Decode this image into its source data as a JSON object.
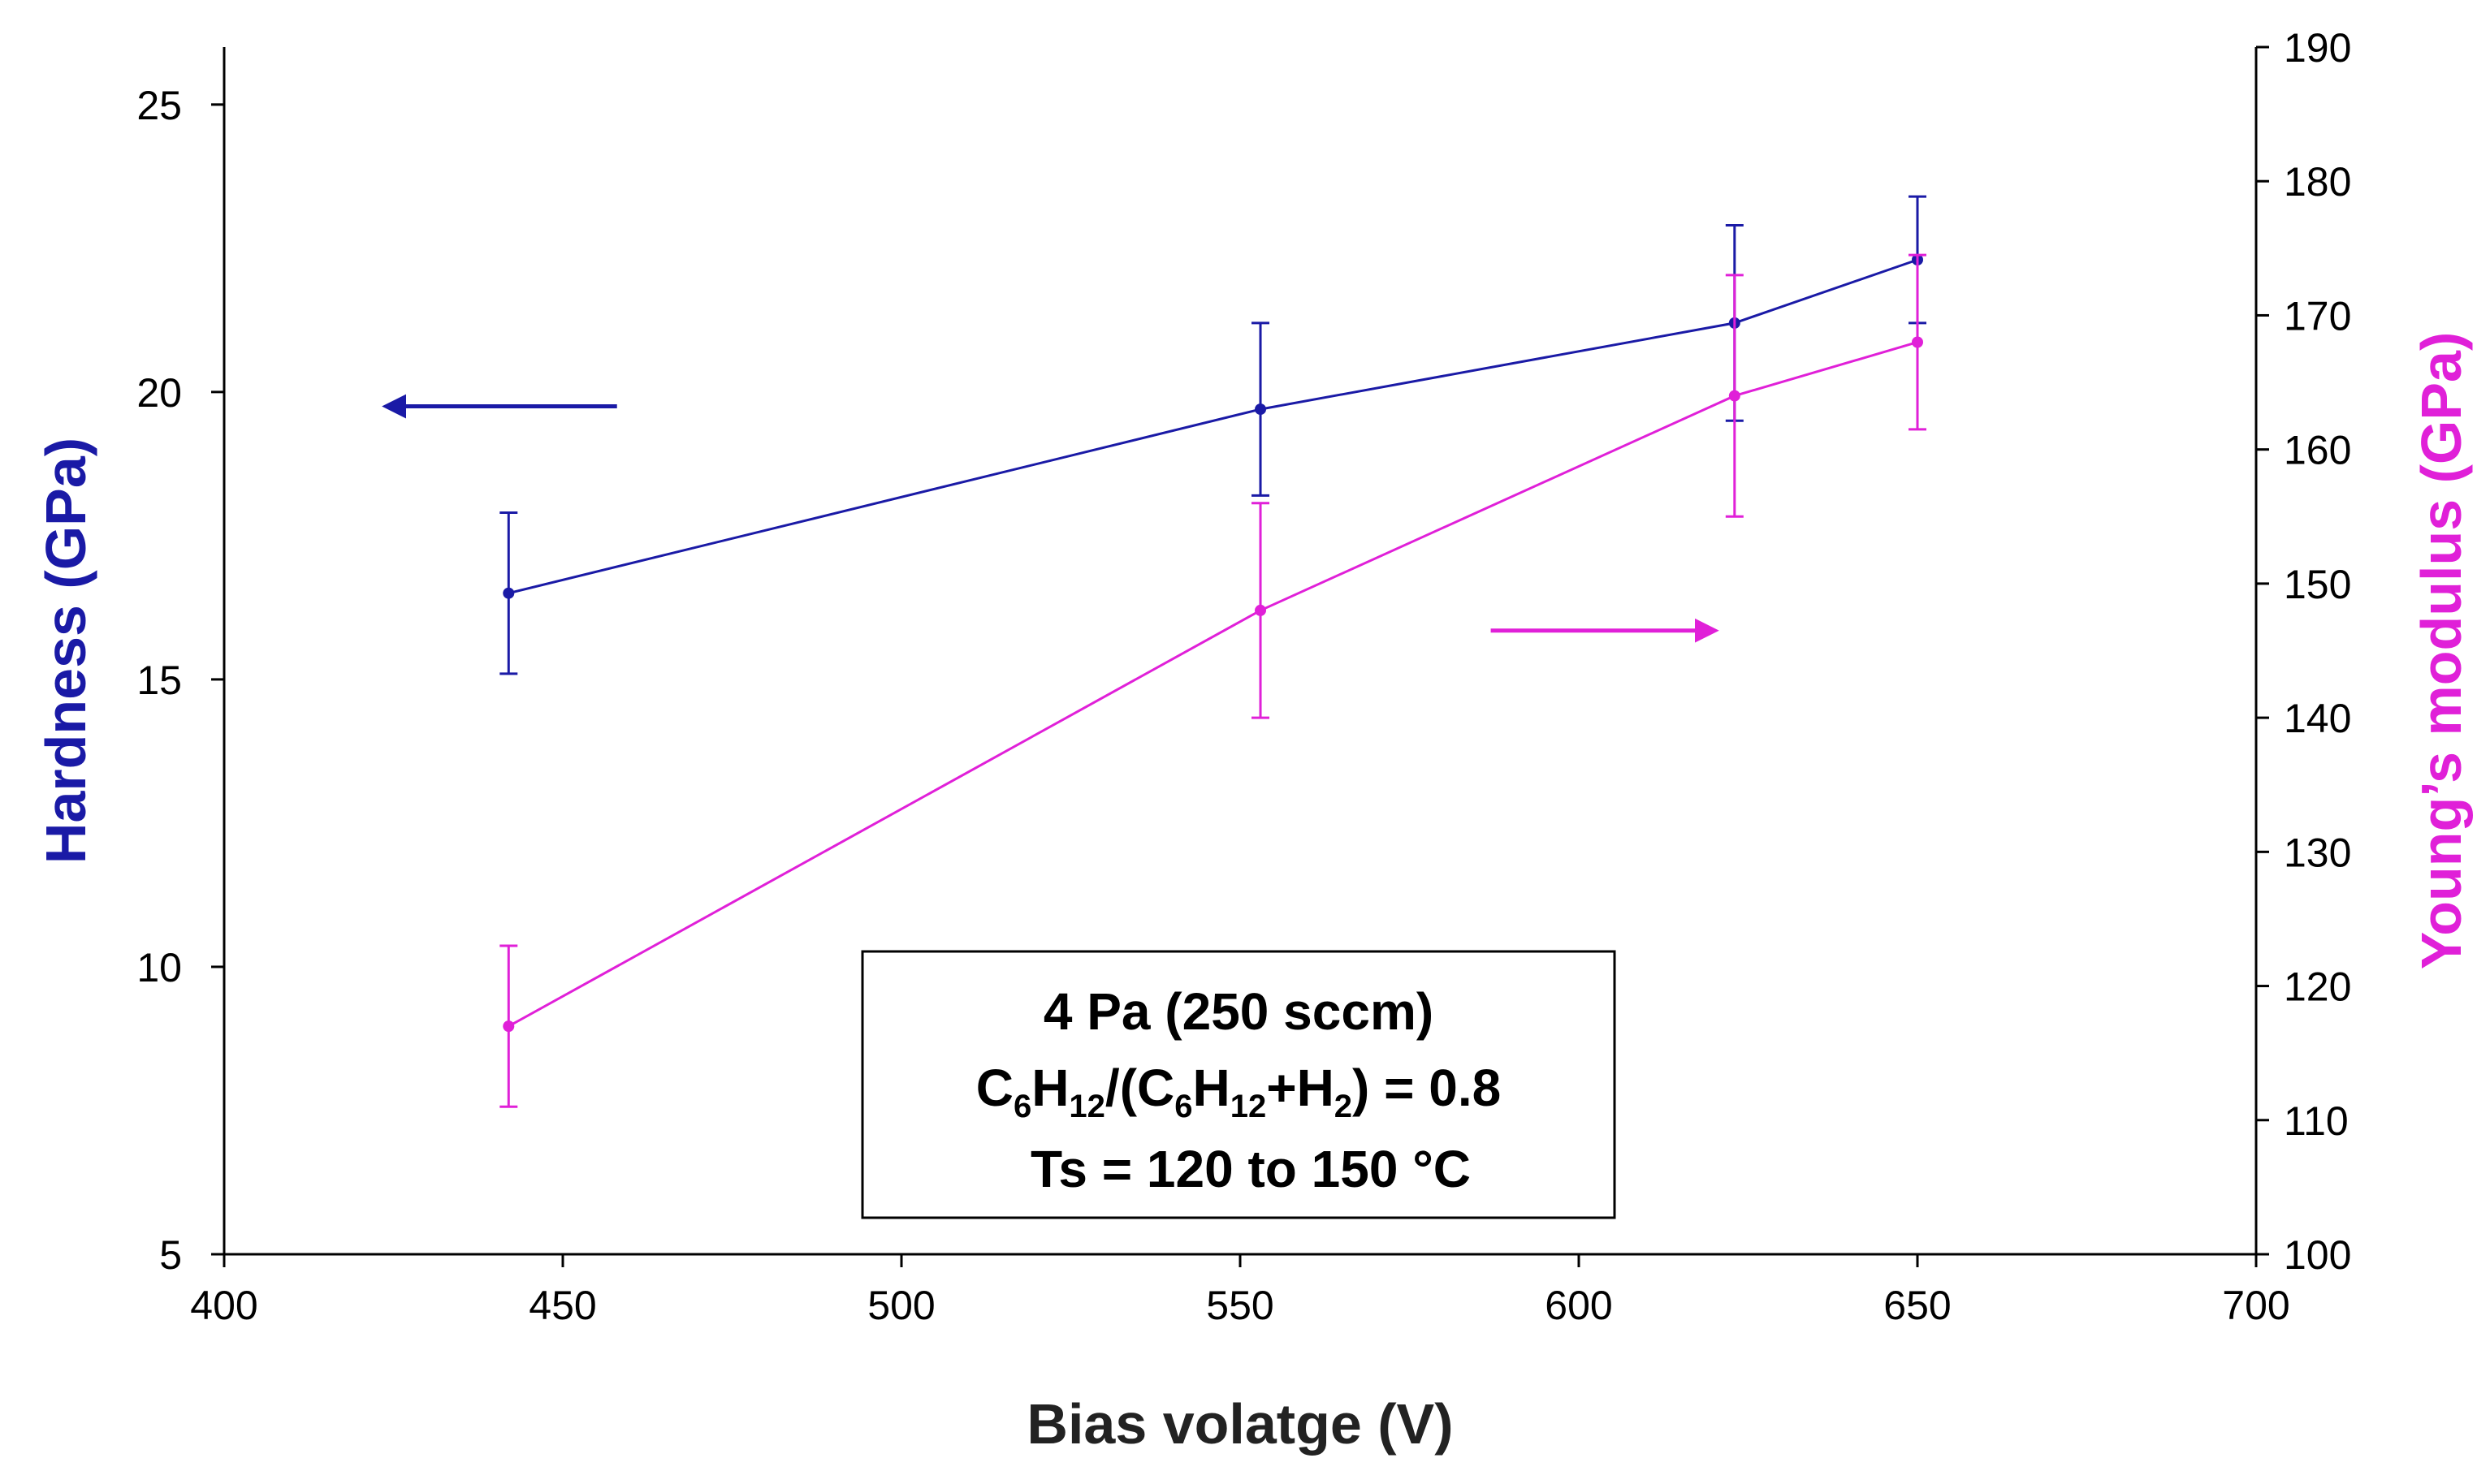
{
  "chart_data": {
    "type": "line",
    "x_label": "Bias volatge (V)",
    "y_left_label": "Hardness (GPa)",
    "y_right_label": "Young’s modulus (GPa)",
    "x_range": [
      400,
      700
    ],
    "x_ticks": [
      400,
      450,
      500,
      550,
      600,
      650,
      700
    ],
    "y_left_range": [
      5,
      26
    ],
    "y_left_ticks": [
      5,
      10,
      15,
      20,
      25
    ],
    "y_right_range": [
      100,
      190
    ],
    "y_right_ticks": [
      100,
      110,
      120,
      130,
      140,
      150,
      160,
      170,
      180,
      190
    ],
    "grid": false,
    "colors": {
      "hardness": "#1a1aa6",
      "modulus": "#e020d8",
      "axis": "#000000"
    },
    "series": [
      {
        "name": "Hardness",
        "axis": "left",
        "x": [
          442,
          553,
          623,
          650
        ],
        "y": [
          16.5,
          19.7,
          21.2,
          22.3
        ],
        "err": [
          1.4,
          1.5,
          1.7,
          1.1
        ]
      },
      {
        "name": "Young's modulus",
        "axis": "right",
        "x": [
          442,
          553,
          623,
          650
        ],
        "y": [
          117,
          148,
          164,
          168
        ],
        "err": [
          6,
          8,
          9,
          6.5
        ]
      }
    ],
    "annotation": {
      "line1": "4 Pa (250 sccm)",
      "line2": {
        "a": "C",
        "a_sub": "6",
        "b": "H",
        "b_sub": "12",
        "c": "/(C",
        "c_sub": "6",
        "d": "H",
        "d_sub": "12",
        "e": "+H",
        "e_sub": "2",
        "f": ") = 0.8"
      },
      "line3": "Ts = 120 to 150 °C"
    },
    "arrows": [
      {
        "series": "Hardness",
        "direction": "left",
        "x_from": 458,
        "x_to": 424,
        "y": 19.75
      },
      {
        "series": "Young's modulus",
        "direction": "right",
        "x_from": 587,
        "x_to": 620,
        "y": 146.5
      }
    ]
  }
}
